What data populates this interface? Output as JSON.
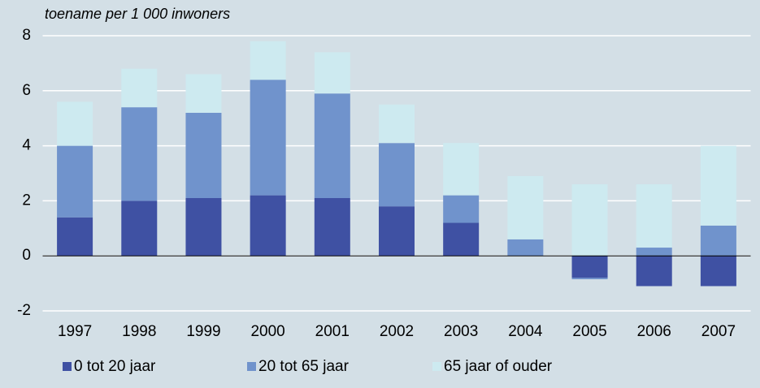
{
  "chart_data": {
    "type": "stacked-bar",
    "title": "toename per 1 000 inwoners",
    "categories": [
      "1997",
      "1998",
      "1999",
      "2000",
      "2001",
      "2002",
      "2003",
      "2004",
      "2005",
      "2006",
      "2007"
    ],
    "series": [
      {
        "name": "0 tot 20 jaar",
        "color": "#3f51a3",
        "values": [
          1.4,
          2.0,
          2.1,
          2.2,
          2.1,
          1.8,
          1.2,
          0,
          -0.8,
          -1.1,
          -1.1
        ]
      },
      {
        "name": "20 tot 65 jaar",
        "color": "#7093cc",
        "values": [
          2.6,
          3.4,
          3.1,
          4.2,
          3.8,
          2.3,
          1.0,
          0.6,
          -0.05,
          0.3,
          1.1
        ]
      },
      {
        "name": "65 jaar of ouder",
        "color": "#cdeaf0",
        "values": [
          1.6,
          1.4,
          1.4,
          1.4,
          1.5,
          1.4,
          1.9,
          2.3,
          2.6,
          2.3,
          2.9
        ]
      }
    ],
    "ylim": [
      -2,
      8
    ],
    "yticks": [
      -2,
      0,
      2,
      4,
      6,
      8
    ],
    "grid": true
  }
}
